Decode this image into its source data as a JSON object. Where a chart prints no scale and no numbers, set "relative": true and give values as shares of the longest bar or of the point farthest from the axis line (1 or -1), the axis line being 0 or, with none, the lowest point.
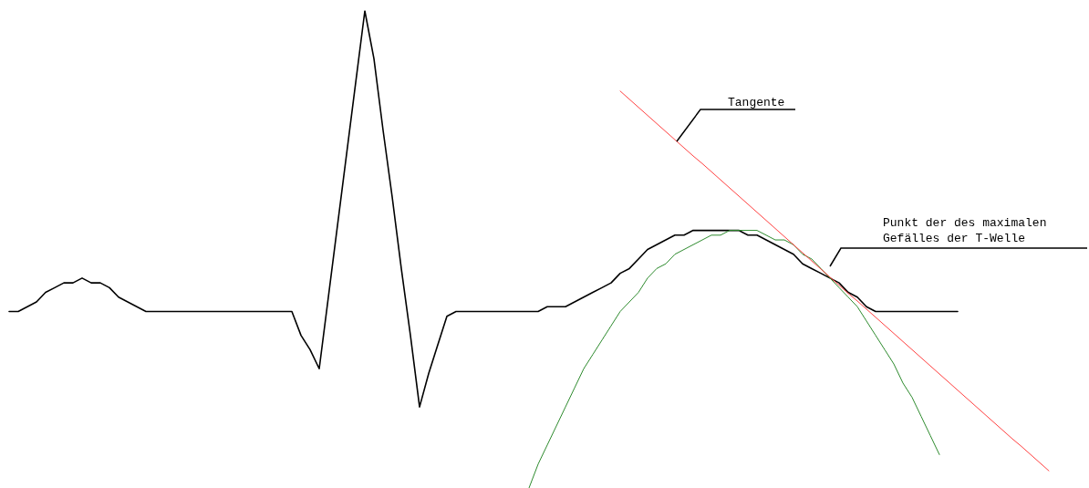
{
  "chart_data": {
    "type": "line",
    "relative": true,
    "marker": "none",
    "line_style": "solid",
    "categories": [
      null,
      null,
      null,
      null,
      null,
      null,
      null,
      null,
      null,
      null,
      null,
      null,
      null,
      null,
      null,
      null,
      null,
      null,
      null,
      null,
      null,
      null,
      null,
      null,
      null,
      null,
      null,
      null,
      null,
      null,
      null,
      null,
      null,
      null,
      null,
      null,
      null,
      null,
      null,
      null,
      null,
      null,
      null,
      null,
      null,
      null,
      null,
      null,
      null,
      null,
      null,
      null,
      null,
      null,
      null,
      null,
      null,
      null,
      null,
      null,
      null,
      null,
      null,
      null,
      null,
      null,
      null,
      null,
      null,
      null,
      null,
      null,
      null,
      null,
      null,
      null,
      null,
      null,
      null,
      null,
      null,
      null,
      null,
      null,
      null,
      null,
      null,
      null,
      null,
      null,
      null,
      null,
      null,
      null,
      null,
      null,
      null,
      null,
      null,
      null,
      null,
      null,
      null,
      null,
      null,
      null,
      null,
      null,
      null,
      null,
      null,
      null,
      null,
      null,
      null,
      null
    ],
    "series": [
      {
        "color": "#000000",
        "values": [
          0.37,
          0.37,
          0.38,
          0.39,
          0.41,
          0.42,
          0.43,
          0.43,
          0.44,
          0.43,
          0.43,
          0.42,
          0.4,
          0.39,
          0.38,
          0.37,
          0.37,
          0.37,
          0.37,
          0.37,
          0.37,
          0.37,
          0.37,
          0.37,
          0.37,
          0.37,
          0.37,
          0.37,
          0.37,
          0.37,
          0.37,
          0.37,
          0.32,
          0.29,
          0.25,
          0.4,
          0.55,
          0.7,
          0.85,
          1,
          0.9,
          0.75,
          0.61,
          0.46,
          0.32,
          0.17,
          0.24,
          0.3,
          0.36,
          0.37,
          0.37,
          0.37,
          0.37,
          0.37,
          0.37,
          0.37,
          0.37,
          0.37,
          0.37,
          0.38,
          0.38,
          0.38,
          0.39,
          0.4,
          0.41,
          0.42,
          0.43,
          0.45,
          0.46,
          0.48,
          0.5,
          0.51,
          0.52,
          0.53,
          0.53,
          0.54,
          0.54,
          0.54,
          0.54,
          0.54,
          0.54,
          0.53,
          0.53,
          0.52,
          0.51,
          0.5,
          0.49,
          0.47,
          0.46,
          0.45,
          0.44,
          0.43,
          0.41,
          0.4,
          0.38,
          0.37,
          0.37,
          0.37,
          0.37,
          0.37,
          0.37,
          0.37,
          0.37,
          0.37,
          0.37,
          null,
          null,
          null,
          null,
          null,
          null,
          null,
          null,
          null,
          null,
          null
        ]
      },
      {
        "color": "#2e8b2e",
        "values": [
          null,
          null,
          null,
          null,
          null,
          null,
          null,
          null,
          null,
          null,
          null,
          null,
          null,
          null,
          null,
          null,
          null,
          null,
          null,
          null,
          null,
          null,
          null,
          null,
          null,
          null,
          null,
          null,
          null,
          null,
          null,
          null,
          null,
          null,
          null,
          null,
          null,
          null,
          null,
          null,
          null,
          null,
          null,
          null,
          null,
          null,
          null,
          null,
          null,
          null,
          null,
          null,
          null,
          null,
          null,
          null,
          null,
          0,
          0.05,
          0.09,
          0.13,
          0.17,
          0.21,
          0.25,
          0.28,
          0.31,
          0.34,
          0.37,
          0.39,
          0.41,
          0.44,
          0.46,
          0.47,
          0.49,
          0.5,
          0.51,
          0.52,
          0.53,
          0.53,
          0.54,
          0.54,
          0.54,
          0.54,
          0.53,
          0.52,
          0.52,
          0.51,
          0.49,
          0.48,
          0.46,
          0.44,
          0.42,
          0.4,
          0.38,
          0.35,
          0.32,
          0.29,
          0.26,
          0.22,
          0.19,
          0.15,
          0.11,
          0.07,
          null,
          null,
          null,
          null,
          null,
          null,
          null,
          null,
          null,
          null,
          null,
          null,
          null
        ]
      },
      {
        "color": "#ff4040",
        "values": [
          null,
          null,
          null,
          null,
          null,
          null,
          null,
          null,
          null,
          null,
          null,
          null,
          null,
          null,
          null,
          null,
          null,
          null,
          null,
          null,
          null,
          null,
          null,
          null,
          null,
          null,
          null,
          null,
          null,
          null,
          null,
          null,
          null,
          null,
          null,
          null,
          null,
          null,
          null,
          null,
          null,
          null,
          null,
          null,
          null,
          null,
          null,
          null,
          null,
          null,
          null,
          null,
          null,
          null,
          null,
          null,
          null,
          null,
          null,
          null,
          null,
          null,
          null,
          null,
          null,
          null,
          null,
          0.832,
          0.815,
          0.798,
          0.781,
          0.764,
          0.747,
          0.73,
          0.713,
          0.696,
          0.68,
          0.663,
          0.646,
          0.629,
          0.612,
          0.595,
          0.578,
          0.561,
          0.544,
          0.527,
          0.51,
          0.493,
          0.476,
          0.459,
          0.442,
          0.425,
          0.408,
          0.392,
          0.375,
          0.358,
          0.341,
          0.324,
          0.307,
          0.29,
          0.273,
          0.256,
          0.239,
          0.222,
          0.205,
          0.188,
          0.171,
          0.154,
          0.137,
          0.12,
          0.103,
          0.087,
          0.07,
          0.053,
          0.036,
          null
        ]
      }
    ],
    "annotations": [
      "Tangente",
      "Punkt der des maximalen\nGefälles der T-Welle"
    ]
  }
}
